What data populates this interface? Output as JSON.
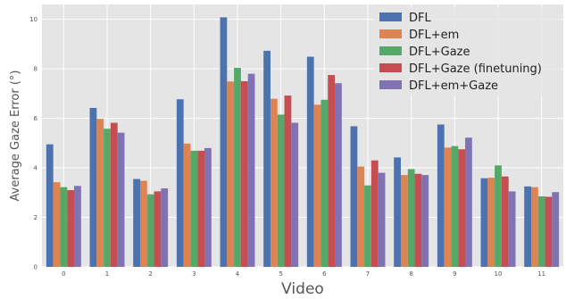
{
  "chart_data": {
    "type": "bar",
    "xlabel": "Video",
    "ylabel": "Average Gaze Error (°)",
    "categories": [
      "0",
      "1",
      "2",
      "3",
      "4",
      "5",
      "6",
      "7",
      "8",
      "9",
      "10",
      "11"
    ],
    "ylim": [
      0,
      10.6
    ],
    "yticks": [
      "0",
      "2",
      "4",
      "6",
      "8",
      "10"
    ],
    "grid": true,
    "legend_position": "top-right",
    "background": "#e5e5e5",
    "series": [
      {
        "name": "DFL",
        "color": "#4c72b0",
        "values": [
          4.95,
          6.42,
          3.55,
          6.77,
          10.08,
          8.73,
          8.49,
          5.68,
          4.42,
          5.75,
          3.58,
          3.25
        ]
      },
      {
        "name": "DFL+em",
        "color": "#dd8452",
        "values": [
          3.42,
          5.98,
          3.48,
          4.98,
          7.49,
          6.79,
          6.55,
          4.05,
          3.71,
          4.82,
          3.6,
          3.22
        ]
      },
      {
        "name": "DFL+Gaze",
        "color": "#55a868",
        "values": [
          3.22,
          5.58,
          2.93,
          4.69,
          8.04,
          6.15,
          6.75,
          3.29,
          3.95,
          4.88,
          4.1,
          2.85
        ]
      },
      {
        "name": "DFL+Gaze (finetuning)",
        "color": "#c44e52",
        "values": [
          3.1,
          5.82,
          3.05,
          4.69,
          7.5,
          6.92,
          7.75,
          4.3,
          3.76,
          4.75,
          3.65,
          2.83
        ]
      },
      {
        "name": "DFL+em+Gaze",
        "color": "#8172b3",
        "values": [
          3.27,
          5.42,
          3.17,
          4.8,
          7.8,
          5.82,
          7.42,
          3.8,
          3.71,
          5.22,
          3.05,
          3.02
        ]
      }
    ]
  }
}
